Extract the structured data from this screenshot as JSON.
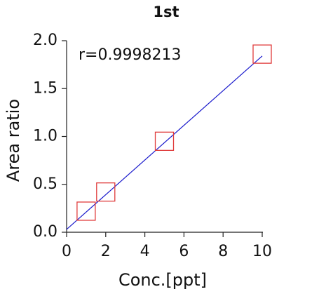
{
  "chart_data": {
    "type": "scatter",
    "title": "1st",
    "x_label": "Conc.[ppt]",
    "y_label": "Area ratio",
    "annotation": "r=0.9998213",
    "series": [
      {
        "x": [
          1,
          2,
          5,
          10
        ],
        "values": [
          0.22,
          0.42,
          0.95,
          1.86
        ],
        "color": "#e03c3c",
        "marker": "square"
      }
    ],
    "fit": {
      "x": [
        0,
        10
      ],
      "values": [
        0.03,
        1.84
      ],
      "color": "#1a1acc"
    },
    "xlim": [
      0,
      10
    ],
    "xticks": [
      0,
      2,
      4,
      6,
      8,
      10
    ],
    "ylim": [
      0,
      2
    ],
    "yticks": [
      {
        "value": 0,
        "label": "0.0"
      },
      0.5,
      {
        "value": 1,
        "label": "1.0"
      },
      1.5,
      {
        "value": 2,
        "label": "2.0"
      }
    ]
  }
}
